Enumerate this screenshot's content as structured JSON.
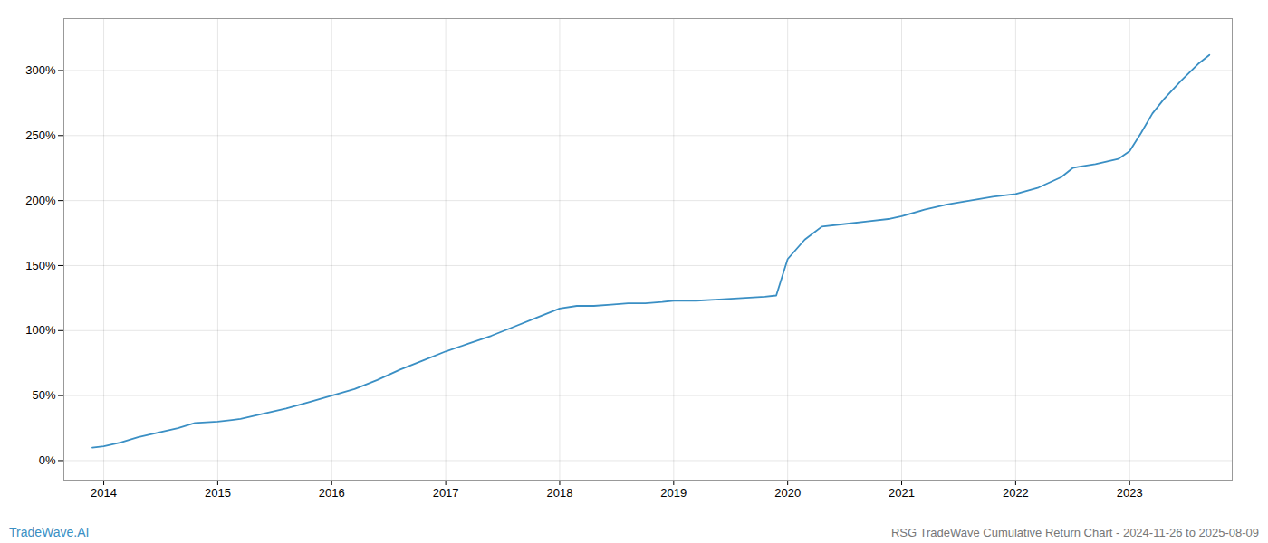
{
  "chart_data": {
    "type": "line",
    "title": "RSG TradeWave Cumulative Return Chart - 2024-11-26 to 2025-08-09",
    "annotations": [
      "TradeWave.AI"
    ],
    "color": "#3a8fc4",
    "grid": true,
    "xlim": [
      2013.65,
      2023.9
    ],
    "ylim": [
      -15,
      340
    ],
    "xticks": [
      2014,
      2015,
      2016,
      2017,
      2018,
      2019,
      2020,
      2021,
      2022,
      2023
    ],
    "yticks": [
      {
        "value": 0,
        "label": "0%"
      },
      {
        "value": 50,
        "label": "50%"
      },
      {
        "value": 100,
        "label": "100%"
      },
      {
        "value": 150,
        "label": "150%"
      },
      {
        "value": 200,
        "label": "200%"
      },
      {
        "value": 250,
        "label": "250%"
      },
      {
        "value": 300,
        "label": "300%"
      }
    ],
    "x": [
      2013.9,
      2014.0,
      2014.15,
      2014.3,
      2014.5,
      2014.65,
      2014.8,
      2015.0,
      2015.2,
      2015.4,
      2015.6,
      2015.8,
      2016.0,
      2016.2,
      2016.4,
      2016.6,
      2016.8,
      2017.0,
      2017.2,
      2017.4,
      2017.6,
      2017.8,
      2018.0,
      2018.15,
      2018.3,
      2018.45,
      2018.6,
      2018.75,
      2018.9,
      2019.0,
      2019.2,
      2019.4,
      2019.6,
      2019.8,
      2019.9,
      2020.0,
      2020.15,
      2020.3,
      2020.5,
      2020.7,
      2020.9,
      2021.0,
      2021.2,
      2021.4,
      2021.6,
      2021.8,
      2022.0,
      2022.2,
      2022.4,
      2022.5,
      2022.55,
      2022.7,
      2022.9,
      2023.0,
      2023.1,
      2023.2,
      2023.3,
      2023.45,
      2023.6,
      2023.7
    ],
    "values": [
      10,
      11,
      14,
      18,
      22,
      25,
      29,
      30,
      32,
      36,
      40,
      45,
      50,
      55,
      62,
      70,
      77,
      84,
      90,
      96,
      103,
      110,
      117,
      119,
      119,
      120,
      121,
      121,
      122,
      123,
      123,
      124,
      125,
      126,
      127,
      155,
      170,
      180,
      182,
      184,
      186,
      188,
      193,
      197,
      200,
      203,
      205,
      210,
      218,
      225,
      226,
      228,
      232,
      238,
      252,
      267,
      278,
      292,
      305,
      312
    ]
  }
}
